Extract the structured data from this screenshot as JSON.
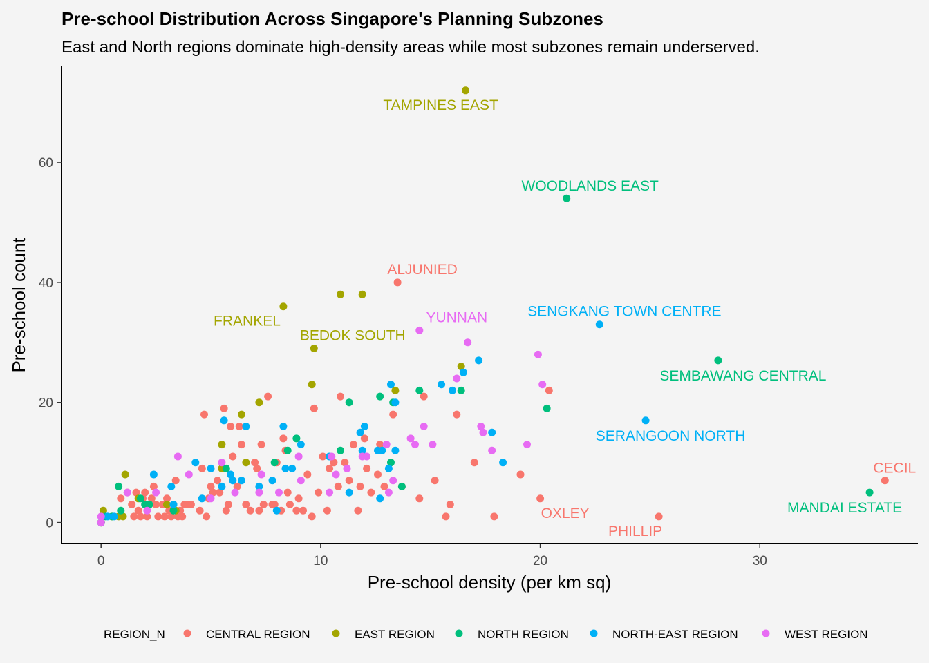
{
  "chart_data": {
    "type": "scatter",
    "title": "Pre-school Distribution Across Singapore's Planning Subzones",
    "subtitle": "East and North regions dominate high-density areas while most subzones remain underserved.",
    "xlabel": "Pre-school density (per km sq)",
    "ylabel": "Pre-school count",
    "xlim": [
      -1.8,
      37.2
    ],
    "ylim": [
      -3.5,
      76
    ],
    "x_ticks": [
      0,
      10,
      20,
      30
    ],
    "y_ticks": [
      0,
      20,
      40,
      60
    ],
    "x_tick_labels": [
      "0",
      "10",
      "20",
      "30"
    ],
    "y_tick_labels": [
      "0",
      "20",
      "40",
      "60"
    ],
    "grid": false,
    "legend": {
      "title": "REGION_N",
      "position": "bottom",
      "entries": [
        {
          "label": "CENTRAL REGION",
          "color": "#F8766D"
        },
        {
          "label": "EAST REGION",
          "color": "#A3A500"
        },
        {
          "label": "NORTH REGION",
          "color": "#00BF7D"
        },
        {
          "label": "NORTH-EAST REGION",
          "color": "#00B0F6"
        },
        {
          "label": "WEST REGION",
          "color": "#E76BF3"
        }
      ]
    },
    "labels": [
      {
        "text": "TAMPINES EAST",
        "x": 16.6,
        "y": 72,
        "region": "EAST REGION"
      },
      {
        "text": "WOODLANDS EAST",
        "x": 21.2,
        "y": 54,
        "region": "NORTH REGION"
      },
      {
        "text": "ALJUNIED",
        "x": 13.5,
        "y": 40,
        "region": "CENTRAL REGION"
      },
      {
        "text": "FRANKEL",
        "x": 8.3,
        "y": 36,
        "region": "EAST REGION"
      },
      {
        "text": "BEDOK SOUTH",
        "x": 9.7,
        "y": 29,
        "region": "EAST REGION"
      },
      {
        "text": "YUNNAN",
        "x": 14.5,
        "y": 32,
        "region": "WEST REGION"
      },
      {
        "text": "SENGKANG TOWN CENTRE",
        "x": 22.7,
        "y": 33,
        "region": "NORTH-EAST REGION"
      },
      {
        "text": "SEMBAWANG CENTRAL",
        "x": 28.1,
        "y": 27,
        "region": "NORTH REGION"
      },
      {
        "text": "SERANGOON NORTH",
        "x": 24.8,
        "y": 17,
        "region": "NORTH-EAST REGION"
      },
      {
        "text": "CECIL",
        "x": 35.7,
        "y": 7,
        "region": "CENTRAL REGION"
      },
      {
        "text": "MANDAI ESTATE",
        "x": 35.0,
        "y": 5,
        "region": "NORTH REGION"
      },
      {
        "text": "OXLEY",
        "x": 20.0,
        "y": 4,
        "region": "CENTRAL REGION"
      },
      {
        "text": "PHILLIP",
        "x": 25.4,
        "y": 1,
        "region": "CENTRAL REGION"
      }
    ],
    "series": [
      {
        "name": "CENTRAL REGION",
        "color": "#F8766D",
        "points": [
          [
            0,
            0
          ],
          [
            0,
            0
          ],
          [
            0,
            0
          ],
          [
            0,
            0
          ],
          [
            0,
            0
          ],
          [
            0.9,
            4
          ],
          [
            1.2,
            5
          ],
          [
            1.4,
            3
          ],
          [
            1.5,
            1
          ],
          [
            1.6,
            5
          ],
          [
            1.7,
            2
          ],
          [
            1.8,
            1
          ],
          [
            1.9,
            4
          ],
          [
            2.0,
            5
          ],
          [
            2.1,
            1
          ],
          [
            2.2,
            3
          ],
          [
            2.3,
            4
          ],
          [
            2.4,
            6
          ],
          [
            2.5,
            3
          ],
          [
            2.6,
            1
          ],
          [
            2.8,
            3
          ],
          [
            2.9,
            1
          ],
          [
            3.0,
            4
          ],
          [
            3.1,
            2
          ],
          [
            3.2,
            1
          ],
          [
            3.3,
            3
          ],
          [
            3.4,
            7
          ],
          [
            3.5,
            1
          ],
          [
            3.6,
            2
          ],
          [
            3.7,
            1
          ],
          [
            3.8,
            3
          ],
          [
            3.9,
            3
          ],
          [
            4.1,
            3
          ],
          [
            4.5,
            2
          ],
          [
            4.6,
            9
          ],
          [
            4.7,
            18
          ],
          [
            4.8,
            1
          ],
          [
            4.9,
            4
          ],
          [
            5.0,
            6
          ],
          [
            5.1,
            5
          ],
          [
            5.3,
            7
          ],
          [
            5.4,
            5
          ],
          [
            5.5,
            9
          ],
          [
            5.6,
            19
          ],
          [
            5.7,
            2
          ],
          [
            5.8,
            3
          ],
          [
            5.9,
            16
          ],
          [
            6.0,
            11
          ],
          [
            6.2,
            6
          ],
          [
            6.3,
            16
          ],
          [
            6.4,
            13
          ],
          [
            6.6,
            3
          ],
          [
            6.8,
            2
          ],
          [
            7.0,
            10
          ],
          [
            7.1,
            9
          ],
          [
            7.2,
            2
          ],
          [
            7.3,
            13
          ],
          [
            7.4,
            3
          ],
          [
            7.6,
            21
          ],
          [
            7.8,
            3
          ],
          [
            7.9,
            3
          ],
          [
            8.0,
            10
          ],
          [
            8.2,
            2
          ],
          [
            8.3,
            14
          ],
          [
            8.4,
            12
          ],
          [
            8.5,
            5
          ],
          [
            8.6,
            3
          ],
          [
            8.9,
            2
          ],
          [
            9.0,
            4
          ],
          [
            9.2,
            2
          ],
          [
            9.4,
            8
          ],
          [
            9.6,
            1
          ],
          [
            9.7,
            19
          ],
          [
            9.9,
            5
          ],
          [
            10.1,
            11
          ],
          [
            10.3,
            2
          ],
          [
            10.4,
            9
          ],
          [
            10.6,
            10
          ],
          [
            10.8,
            6
          ],
          [
            10.9,
            21
          ],
          [
            11.1,
            10
          ],
          [
            11.3,
            7
          ],
          [
            11.5,
            13
          ],
          [
            11.7,
            2
          ],
          [
            11.8,
            6
          ],
          [
            12.0,
            14
          ],
          [
            12.1,
            9
          ],
          [
            12.3,
            5
          ],
          [
            12.6,
            8
          ],
          [
            12.7,
            13
          ],
          [
            12.9,
            6
          ],
          [
            13.3,
            18
          ],
          [
            13.5,
            40
          ],
          [
            13.7,
            6
          ],
          [
            14.5,
            4
          ],
          [
            14.7,
            21
          ],
          [
            15.2,
            7
          ],
          [
            15.7,
            1
          ],
          [
            15.9,
            3
          ],
          [
            16.2,
            18
          ],
          [
            17.0,
            10
          ],
          [
            17.9,
            1
          ],
          [
            19.1,
            8
          ],
          [
            20.0,
            4
          ],
          [
            20.4,
            22
          ],
          [
            25.4,
            1
          ],
          [
            35.7,
            7
          ]
        ]
      },
      {
        "name": "EAST REGION",
        "color": "#A3A500",
        "points": [
          [
            0,
            0
          ],
          [
            0.1,
            2
          ],
          [
            0.5,
            1
          ],
          [
            0.8,
            1
          ],
          [
            1.0,
            1
          ],
          [
            1.1,
            8
          ],
          [
            1.7,
            4
          ],
          [
            3.0,
            3
          ],
          [
            3.4,
            2
          ],
          [
            5.5,
            9
          ],
          [
            5.5,
            13
          ],
          [
            6.4,
            18
          ],
          [
            6.6,
            10
          ],
          [
            7.2,
            20
          ],
          [
            8.3,
            36
          ],
          [
            9.6,
            23
          ],
          [
            9.7,
            29
          ],
          [
            10.9,
            38
          ],
          [
            11.9,
            38
          ],
          [
            13.4,
            22
          ],
          [
            16.4,
            26
          ],
          [
            16.6,
            72
          ]
        ]
      },
      {
        "name": "NORTH REGION",
        "color": "#00BF7D",
        "points": [
          [
            0,
            0
          ],
          [
            0.2,
            1
          ],
          [
            0.5,
            1
          ],
          [
            0.8,
            6
          ],
          [
            0.9,
            2
          ],
          [
            1.8,
            4
          ],
          [
            2.0,
            3
          ],
          [
            2.1,
            3
          ],
          [
            2.2,
            3
          ],
          [
            3.3,
            2
          ],
          [
            5.7,
            9
          ],
          [
            7.9,
            10
          ],
          [
            8.5,
            12
          ],
          [
            8.9,
            14
          ],
          [
            10.9,
            12
          ],
          [
            11.3,
            20
          ],
          [
            12.7,
            21
          ],
          [
            13.2,
            10
          ],
          [
            13.3,
            20
          ],
          [
            13.7,
            6
          ],
          [
            14.5,
            22
          ],
          [
            16.4,
            22
          ],
          [
            20.3,
            19
          ],
          [
            21.2,
            54
          ],
          [
            28.1,
            27
          ],
          [
            35.0,
            5
          ]
        ]
      },
      {
        "name": "NORTH-EAST REGION",
        "color": "#00B0F6",
        "points": [
          [
            0,
            0
          ],
          [
            0.3,
            1
          ],
          [
            0.6,
            1
          ],
          [
            2.4,
            8
          ],
          [
            3.2,
            6
          ],
          [
            3.3,
            3
          ],
          [
            4.3,
            10
          ],
          [
            4.6,
            4
          ],
          [
            5.0,
            9
          ],
          [
            5.5,
            6
          ],
          [
            5.6,
            17
          ],
          [
            5.9,
            8
          ],
          [
            6.0,
            7
          ],
          [
            6.4,
            7
          ],
          [
            6.6,
            16
          ],
          [
            7.2,
            6
          ],
          [
            7.8,
            7
          ],
          [
            8.0,
            2
          ],
          [
            8.3,
            16
          ],
          [
            8.4,
            9
          ],
          [
            8.7,
            9
          ],
          [
            9.1,
            13
          ],
          [
            10.4,
            11
          ],
          [
            11.3,
            5
          ],
          [
            11.8,
            15
          ],
          [
            11.9,
            12
          ],
          [
            12.0,
            16
          ],
          [
            12.6,
            12
          ],
          [
            12.7,
            4
          ],
          [
            12.8,
            12
          ],
          [
            13.1,
            9
          ],
          [
            13.2,
            23
          ],
          [
            13.4,
            20
          ],
          [
            13.4,
            12
          ],
          [
            15.5,
            23
          ],
          [
            16.0,
            22
          ],
          [
            16.5,
            25
          ],
          [
            17.2,
            27
          ],
          [
            17.8,
            15
          ],
          [
            18.3,
            10
          ],
          [
            22.7,
            33
          ],
          [
            24.8,
            17
          ]
        ]
      },
      {
        "name": "WEST REGION",
        "color": "#E76BF3",
        "points": [
          [
            0,
            0
          ],
          [
            0,
            1
          ],
          [
            1.2,
            5
          ],
          [
            2.1,
            2
          ],
          [
            2.5,
            5
          ],
          [
            3.5,
            11
          ],
          [
            4.0,
            8
          ],
          [
            5.0,
            4
          ],
          [
            5.5,
            10
          ],
          [
            6.1,
            5
          ],
          [
            7.2,
            5
          ],
          [
            7.3,
            8
          ],
          [
            8.1,
            5
          ],
          [
            9.0,
            11
          ],
          [
            9.1,
            7
          ],
          [
            10.4,
            5
          ],
          [
            10.5,
            11
          ],
          [
            10.7,
            8
          ],
          [
            11.2,
            9
          ],
          [
            11.9,
            11
          ],
          [
            12.1,
            11
          ],
          [
            13.0,
            13
          ],
          [
            13.1,
            5
          ],
          [
            13.3,
            7
          ],
          [
            14.1,
            14
          ],
          [
            14.3,
            13
          ],
          [
            14.5,
            32
          ],
          [
            14.7,
            16
          ],
          [
            15.1,
            13
          ],
          [
            16.2,
            24
          ],
          [
            16.7,
            30
          ],
          [
            17.3,
            16
          ],
          [
            17.4,
            15
          ],
          [
            17.8,
            12
          ],
          [
            19.4,
            13
          ],
          [
            19.9,
            28
          ],
          [
            20.1,
            23
          ]
        ]
      }
    ]
  }
}
